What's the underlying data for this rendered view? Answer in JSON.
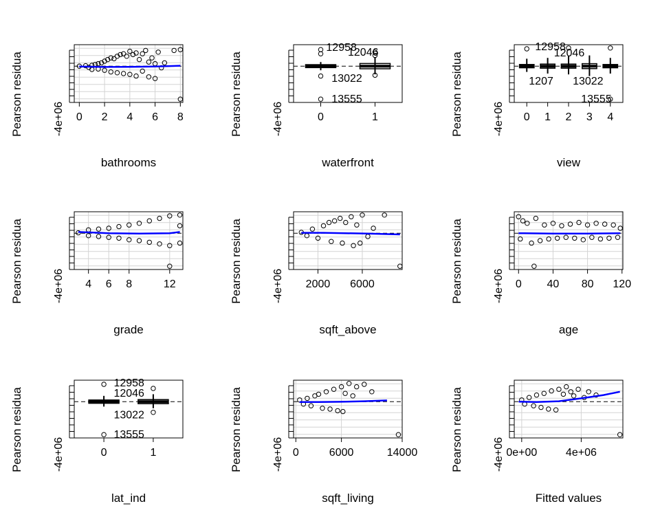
{
  "chart_data": [
    {
      "type": "scatter",
      "xlabel": "bathrooms",
      "ylabel": "Pearson residua",
      "xlim": [
        -0.4,
        8.2
      ],
      "xticks": [
        "0",
        "2",
        "4",
        "6",
        "8"
      ],
      "xtick_values": [
        0,
        2,
        4,
        6,
        8
      ],
      "ylim": [
        -4400000,
        2600000
      ],
      "ytick_labels": [
        "-4e+06"
      ],
      "grid": true,
      "smoother_color": "#0000ff",
      "points": [
        [
          0,
          0
        ],
        [
          0.5,
          50000
        ],
        [
          0.75,
          -150000
        ],
        [
          1,
          100000
        ],
        [
          1,
          -400000
        ],
        [
          1.25,
          200000
        ],
        [
          1.5,
          300000
        ],
        [
          1.5,
          -350000
        ],
        [
          1.75,
          400000
        ],
        [
          2,
          600000
        ],
        [
          2,
          -500000
        ],
        [
          2.25,
          800000
        ],
        [
          2.5,
          1000000
        ],
        [
          2.5,
          -700000
        ],
        [
          2.75,
          900000
        ],
        [
          3,
          1200000
        ],
        [
          3,
          -800000
        ],
        [
          3.25,
          1400000
        ],
        [
          3.5,
          1500000
        ],
        [
          3.5,
          -900000
        ],
        [
          3.75,
          1200000
        ],
        [
          4,
          1800000
        ],
        [
          4,
          -1000000
        ],
        [
          4.25,
          1400000
        ],
        [
          4.5,
          1600000
        ],
        [
          4.5,
          -1200000
        ],
        [
          4.75,
          800000
        ],
        [
          5,
          1500000
        ],
        [
          5,
          -600000
        ],
        [
          5.25,
          1900000
        ],
        [
          5.5,
          500000
        ],
        [
          5.5,
          -1300000
        ],
        [
          5.75,
          1000000
        ],
        [
          6,
          300000
        ],
        [
          6,
          -1500000
        ],
        [
          6.25,
          1700000
        ],
        [
          6.5,
          -200000
        ],
        [
          6.75,
          400000
        ],
        [
          7.5,
          1900000
        ],
        [
          8,
          2000000
        ],
        [
          8,
          -4000000
        ]
      ],
      "smooth": [
        [
          0,
          -50000
        ],
        [
          2,
          -100000
        ],
        [
          4,
          -80000
        ],
        [
          6,
          -50000
        ],
        [
          8,
          50000
        ]
      ],
      "labels": []
    },
    {
      "type": "scatter",
      "xlabel": "waterfront",
      "ylabel": "Pearson residua",
      "xlim": [
        -0.5,
        1.5
      ],
      "xticks": [
        "0",
        "1"
      ],
      "xtick_values": [
        0,
        1
      ],
      "ylim": [
        -4400000,
        2600000
      ],
      "ytick_labels": [
        "-4e+06"
      ],
      "grid": false,
      "smoother_color": "#0000ff",
      "points": [
        [
          0,
          -4000000
        ],
        [
          0,
          2000000
        ],
        [
          1,
          1700000
        ],
        [
          1,
          -1100000
        ],
        [
          1,
          1300000
        ],
        [
          0,
          -1200000
        ],
        [
          0,
          1500000
        ]
      ],
      "boxes": [
        {
          "x": 0,
          "q1": -180000,
          "q3": 180000,
          "lo": -500000,
          "hi": 500000
        },
        {
          "x": 1,
          "q1": -320000,
          "q3": 320000,
          "lo": -1000000,
          "hi": 1100000
        }
      ],
      "smooth": [],
      "labels": [
        {
          "text": "12958",
          "x": 0.1,
          "y": 2250000
        },
        {
          "text": "12046",
          "x": 0.5,
          "y": 1700000
        },
        {
          "text": "13022",
          "x": 0.2,
          "y": -1500000
        },
        {
          "text": "13555",
          "x": 0.2,
          "y": -4000000
        }
      ]
    },
    {
      "type": "scatter",
      "xlabel": "view",
      "ylabel": "Pearson residua",
      "xlim": [
        -0.6,
        4.6
      ],
      "xticks": [
        "0",
        "1",
        "2",
        "3",
        "4"
      ],
      "xtick_values": [
        0,
        1,
        2,
        3,
        4
      ],
      "ylim": [
        -4400000,
        2600000
      ],
      "ytick_labels": [
        "-4e+06"
      ],
      "grid": false,
      "smoother_color": "#0000ff",
      "points": [
        [
          4,
          -4000000
        ],
        [
          0,
          2100000
        ],
        [
          2,
          2200000
        ],
        [
          4,
          2200000
        ]
      ],
      "boxes": [
        {
          "x": 0,
          "q1": -200000,
          "q3": 200000,
          "lo": -700000,
          "hi": 900000
        },
        {
          "x": 1,
          "q1": -250000,
          "q3": 250000,
          "lo": -900000,
          "hi": 1000000
        },
        {
          "x": 2,
          "q1": -250000,
          "q3": 250000,
          "lo": -1000000,
          "hi": 1200000
        },
        {
          "x": 3,
          "q1": -300000,
          "q3": 300000,
          "lo": -1200000,
          "hi": 1300000
        },
        {
          "x": 4,
          "q1": -200000,
          "q3": 200000,
          "lo": -900000,
          "hi": 1000000
        }
      ],
      "smooth": [],
      "labels": [
        {
          "text": "12958",
          "x": 0.4,
          "y": 2350000
        },
        {
          "text": "12046",
          "x": 1.3,
          "y": 1600000
        },
        {
          "text": "1207",
          "x": 0.1,
          "y": -1800000
        },
        {
          "text": "13022",
          "x": 2.2,
          "y": -1800000
        },
        {
          "text": "13555",
          "x": 2.6,
          "y": -4000000
        }
      ]
    },
    {
      "type": "scatter",
      "xlabel": "grade",
      "ylabel": "Pearson residua",
      "xlim": [
        2.6,
        13.3
      ],
      "xticks": [
        "4",
        "6",
        "8",
        "12"
      ],
      "xtick_values": [
        4,
        6,
        8,
        12
      ],
      "ylim": [
        -4400000,
        2600000
      ],
      "ytick_labels": [
        "-4e+06"
      ],
      "grid": true,
      "smoother_color": "#0000ff",
      "points": [
        [
          3,
          50000
        ],
        [
          4,
          400000
        ],
        [
          4,
          -300000
        ],
        [
          5,
          500000
        ],
        [
          5,
          -400000
        ],
        [
          6,
          600000
        ],
        [
          6,
          -500000
        ],
        [
          7,
          800000
        ],
        [
          7,
          -600000
        ],
        [
          8,
          1000000
        ],
        [
          8,
          -800000
        ],
        [
          9,
          1200000
        ],
        [
          9,
          -900000
        ],
        [
          10,
          1500000
        ],
        [
          10,
          -1100000
        ],
        [
          11,
          1800000
        ],
        [
          11,
          -1300000
        ],
        [
          12,
          2100000
        ],
        [
          12,
          -1500000
        ],
        [
          12,
          -4000000
        ],
        [
          13,
          2200000
        ],
        [
          13,
          900000
        ],
        [
          13,
          -1200000
        ]
      ],
      "smooth": [
        [
          3,
          150000
        ],
        [
          6,
          0
        ],
        [
          9,
          -50000
        ],
        [
          12,
          0
        ],
        [
          13,
          150000
        ]
      ],
      "labels": []
    },
    {
      "type": "scatter",
      "xlabel": "sqft_above",
      "ylabel": "Pearson residua",
      "xlim": [
        -200,
        9600
      ],
      "xticks": [
        "2000",
        "6000"
      ],
      "xtick_values": [
        2000,
        6000
      ],
      "ylim": [
        -4400000,
        2600000
      ],
      "ytick_labels": [
        "-4e+06"
      ],
      "grid": true,
      "smoother_color": "#0000ff",
      "points": [
        [
          500,
          100000
        ],
        [
          1000,
          -300000
        ],
        [
          1500,
          500000
        ],
        [
          2000,
          -600000
        ],
        [
          2500,
          900000
        ],
        [
          3000,
          1300000
        ],
        [
          3200,
          -1000000
        ],
        [
          3500,
          1500000
        ],
        [
          4000,
          1800000
        ],
        [
          4200,
          -1200000
        ],
        [
          4500,
          1300000
        ],
        [
          5000,
          2000000
        ],
        [
          5200,
          -1500000
        ],
        [
          5500,
          1000000
        ],
        [
          5800,
          -1200000
        ],
        [
          6000,
          2200000
        ],
        [
          6500,
          -400000
        ],
        [
          7000,
          600000
        ],
        [
          8000,
          2200000
        ],
        [
          9400,
          -4000000
        ]
      ],
      "smooth": [
        [
          500,
          50000
        ],
        [
          2500,
          50000
        ],
        [
          4500,
          0
        ],
        [
          6500,
          -50000
        ],
        [
          9400,
          -150000
        ]
      ],
      "labels": []
    },
    {
      "type": "scatter",
      "xlabel": "age",
      "ylabel": "Pearson residua",
      "xlim": [
        -5,
        121
      ],
      "xticks": [
        "0",
        "40",
        "80",
        "120"
      ],
      "xtick_values": [
        0,
        40,
        80,
        120
      ],
      "ylim": [
        -4400000,
        2600000
      ],
      "ytick_labels": [
        "-4e+06"
      ],
      "grid": true,
      "smoother_color": "#0000ff",
      "points": [
        [
          0,
          2000000
        ],
        [
          2,
          -700000
        ],
        [
          5,
          1500000
        ],
        [
          10,
          1200000
        ],
        [
          15,
          -1200000
        ],
        [
          18,
          -4000000
        ],
        [
          20,
          1800000
        ],
        [
          25,
          -900000
        ],
        [
          30,
          1000000
        ],
        [
          35,
          -700000
        ],
        [
          40,
          1200000
        ],
        [
          45,
          -600000
        ],
        [
          50,
          900000
        ],
        [
          55,
          -500000
        ],
        [
          60,
          1100000
        ],
        [
          65,
          -600000
        ],
        [
          70,
          1300000
        ],
        [
          75,
          -800000
        ],
        [
          80,
          1000000
        ],
        [
          85,
          -500000
        ],
        [
          90,
          1200000
        ],
        [
          95,
          -700000
        ],
        [
          100,
          1100000
        ],
        [
          105,
          -600000
        ],
        [
          110,
          1000000
        ],
        [
          115,
          -500000
        ],
        [
          118,
          600000
        ]
      ],
      "smooth": [
        [
          0,
          0
        ],
        [
          40,
          -50000
        ],
        [
          80,
          -50000
        ],
        [
          118,
          0
        ]
      ],
      "labels": []
    },
    {
      "type": "scatter",
      "xlabel": "lat_ind",
      "ylabel": "Pearson residua",
      "xlim": [
        -0.6,
        1.6
      ],
      "xticks": [
        "0",
        "1"
      ],
      "xtick_values": [
        0,
        1
      ],
      "ylim": [
        -4400000,
        2600000
      ],
      "ytick_labels": [
        "-4e+06"
      ],
      "grid": false,
      "smoother_color": "#0000ff",
      "points": [
        [
          0,
          -4000000
        ],
        [
          0,
          2100000
        ],
        [
          1,
          1600000
        ],
        [
          1,
          -1300000
        ]
      ],
      "boxes": [
        {
          "x": 0,
          "q1": -200000,
          "q3": 200000,
          "lo": -600000,
          "hi": 700000
        },
        {
          "x": 1,
          "q1": -250000,
          "q3": 250000,
          "lo": -800000,
          "hi": 900000
        }
      ],
      "smooth": [],
      "labels": [
        {
          "text": "12958",
          "x": 0.2,
          "y": 2250000
        },
        {
          "text": "12046",
          "x": 0.2,
          "y": 1000000
        },
        {
          "text": "13022",
          "x": 0.2,
          "y": -1600000
        },
        {
          "text": "13555",
          "x": 0.2,
          "y": -4000000
        }
      ]
    },
    {
      "type": "scatter",
      "xlabel": "sqft_living",
      "ylabel": "Pearson residua",
      "xlim": [
        -300,
        14000
      ],
      "xticks": [
        "0",
        "6000",
        "14000"
      ],
      "xtick_values": [
        0,
        6000,
        14000
      ],
      "ylim": [
        -4400000,
        2600000
      ],
      "ytick_labels": [
        "-4e+06"
      ],
      "grid": true,
      "smoother_color": "#0000ff",
      "points": [
        [
          500,
          200000
        ],
        [
          1000,
          -300000
        ],
        [
          1500,
          400000
        ],
        [
          2000,
          -500000
        ],
        [
          2500,
          700000
        ],
        [
          3000,
          900000
        ],
        [
          3500,
          -800000
        ],
        [
          4000,
          1200000
        ],
        [
          4500,
          -900000
        ],
        [
          5000,
          1500000
        ],
        [
          5500,
          -1100000
        ],
        [
          6000,
          1800000
        ],
        [
          6200,
          -1200000
        ],
        [
          6500,
          1000000
        ],
        [
          7000,
          2200000
        ],
        [
          7500,
          700000
        ],
        [
          8000,
          1800000
        ],
        [
          9000,
          2100000
        ],
        [
          10000,
          1200000
        ],
        [
          13500,
          -4000000
        ]
      ],
      "smooth": [
        [
          500,
          -50000
        ],
        [
          3000,
          -50000
        ],
        [
          6000,
          -20000
        ],
        [
          9000,
          50000
        ],
        [
          12000,
          150000
        ]
      ],
      "labels": []
    },
    {
      "type": "scatter",
      "xlabel": "Fitted values",
      "ylabel": "Pearson residua",
      "xlim": [
        -500000,
        6800000
      ],
      "xticks": [
        "0e+00",
        "4e+06"
      ],
      "xtick_values": [
        0,
        4000000
      ],
      "ylim": [
        -4400000,
        2600000
      ],
      "ytick_labels": [
        "-4e+06"
      ],
      "grid": true,
      "smoother_color": "#0000ff",
      "points": [
        [
          0,
          200000
        ],
        [
          200000,
          -300000
        ],
        [
          500000,
          500000
        ],
        [
          800000,
          -500000
        ],
        [
          1000000,
          800000
        ],
        [
          1300000,
          -700000
        ],
        [
          1500000,
          1000000
        ],
        [
          1800000,
          -900000
        ],
        [
          2000000,
          1300000
        ],
        [
          2300000,
          -1000000
        ],
        [
          2500000,
          1500000
        ],
        [
          2800000,
          900000
        ],
        [
          3000000,
          1800000
        ],
        [
          3300000,
          1200000
        ],
        [
          3500000,
          700000
        ],
        [
          3800000,
          1500000
        ],
        [
          4200000,
          500000
        ],
        [
          4500000,
          1200000
        ],
        [
          5000000,
          800000
        ],
        [
          6600000,
          -4000000
        ]
      ],
      "smooth": [
        [
          -200000,
          0
        ],
        [
          1000000,
          -50000
        ],
        [
          2500000,
          50000
        ],
        [
          4000000,
          400000
        ],
        [
          5500000,
          800000
        ],
        [
          6600000,
          1200000
        ]
      ],
      "labels": []
    }
  ]
}
